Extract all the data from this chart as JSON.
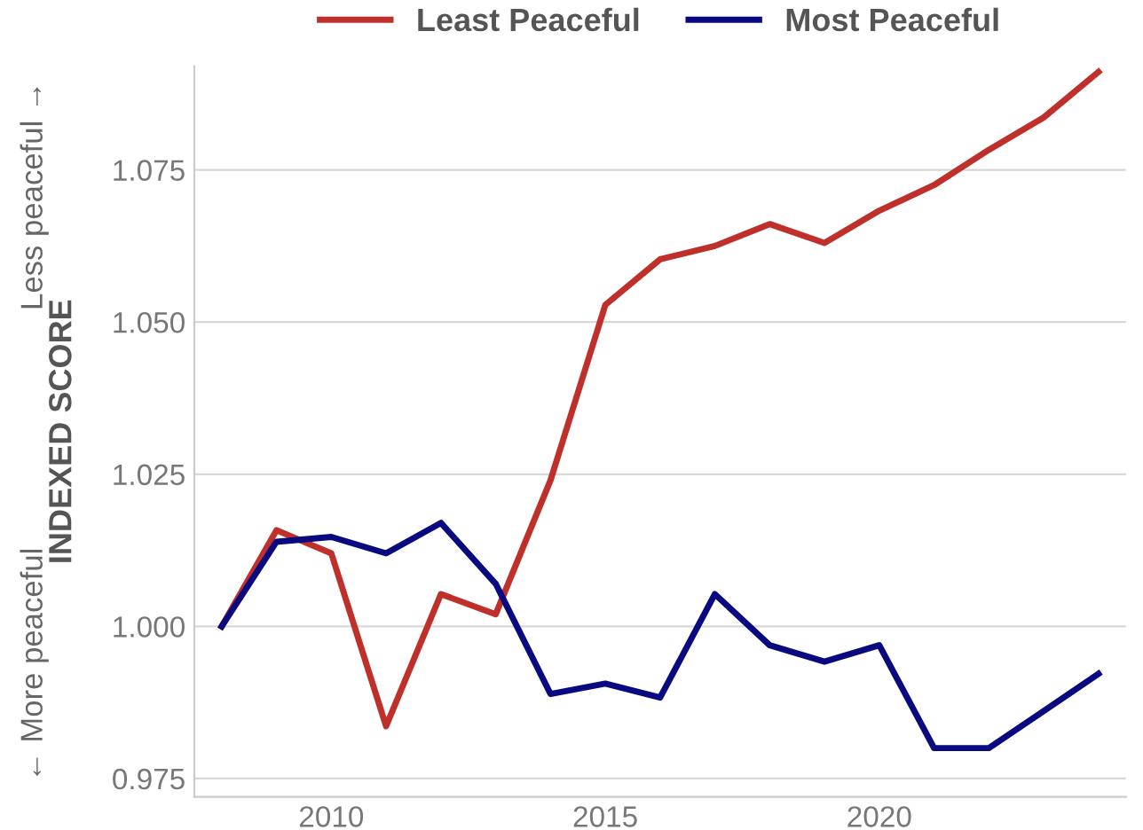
{
  "chart_data": {
    "type": "line",
    "ylabel": "INDEXED SCORE",
    "annotations": [
      "← More peaceful",
      "Less peaceful →"
    ],
    "x": [
      2008,
      2009,
      2010,
      2011,
      2012,
      2013,
      2014,
      2015,
      2016,
      2017,
      2018,
      2019,
      2020,
      2021,
      2022,
      2023,
      2024
    ],
    "series": [
      {
        "name": "Least Peaceful",
        "color": "#c0302b",
        "values": [
          1.0,
          1.0158,
          1.012,
          0.9836,
          1.0053,
          1.002,
          1.024,
          1.0528,
          1.0603,
          1.0625,
          1.0661,
          1.063,
          1.0683,
          1.0725,
          1.0783,
          1.0836,
          1.0911
        ]
      },
      {
        "name": "Most Peaceful",
        "color": "#0a0a80",
        "values": [
          1.0,
          1.0139,
          1.0147,
          1.012,
          1.017,
          1.007,
          0.9889,
          0.9906,
          0.9883,
          1.0053,
          0.9969,
          0.9942,
          0.9969,
          0.98,
          0.98,
          0.9861,
          0.9922
        ]
      }
    ],
    "xlim": [
      2007.5,
      2024.5
    ],
    "ylim": [
      0.972,
      1.092
    ],
    "xticks": [
      2010,
      2015,
      2020
    ],
    "yticks": [
      {
        "value": 0.975,
        "label": "0.975"
      },
      {
        "value": 1.0,
        "label": "1.000"
      },
      {
        "value": 1.025,
        "label": "1.025"
      },
      {
        "value": 1.05,
        "label": "1.050"
      },
      {
        "value": 1.075,
        "label": "1.075"
      }
    ],
    "grid": "y",
    "legend": "top",
    "marker": "none",
    "line_style": "solid"
  }
}
